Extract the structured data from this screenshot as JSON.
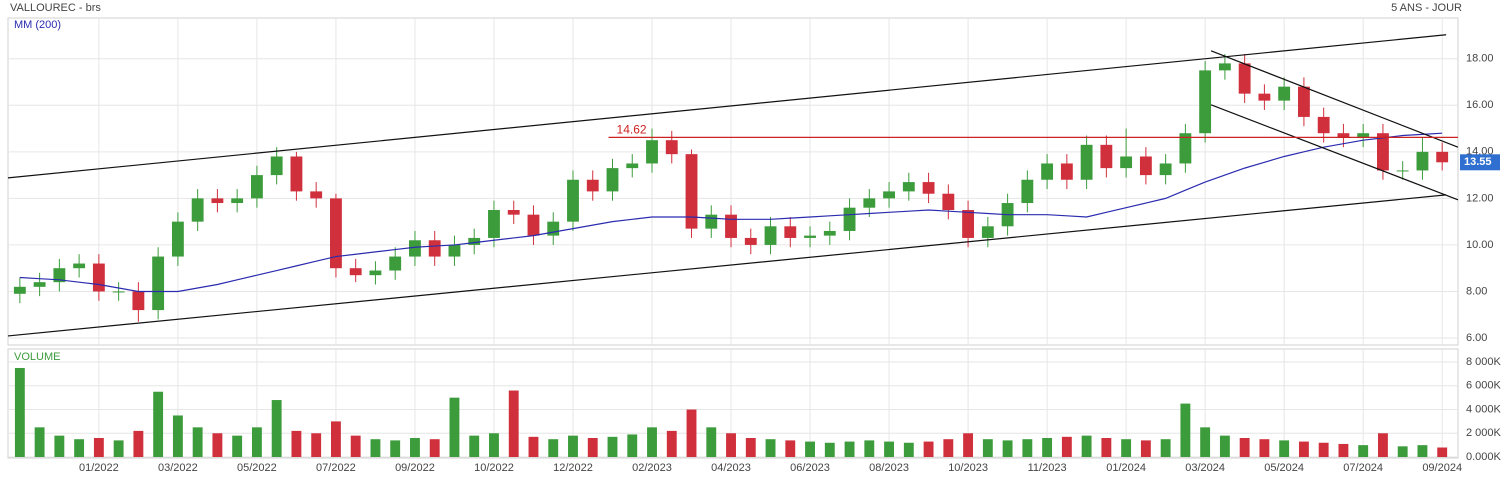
{
  "chart_data": {
    "type": "candlestick",
    "title": "VALLOUREC - brs",
    "period": "5 ANS - JOUR",
    "up_color": "#3c9c3c",
    "down_color": "#d02f3c",
    "xlim": [
      -0.6,
      72.8
    ],
    "xticks": [
      {
        "value": 4,
        "label": "01/2022"
      },
      {
        "value": 8,
        "label": "03/2022"
      },
      {
        "value": 12,
        "label": "05/2022"
      },
      {
        "value": 16,
        "label": "07/2022"
      },
      {
        "value": 20,
        "label": "09/2022"
      },
      {
        "value": 24,
        "label": "10/2022"
      },
      {
        "value": 28,
        "label": "12/2022"
      },
      {
        "value": 32,
        "label": "02/2023"
      },
      {
        "value": 36,
        "label": "04/2023"
      },
      {
        "value": 40,
        "label": "06/2023"
      },
      {
        "value": 44,
        "label": "08/2023"
      },
      {
        "value": 48,
        "label": "10/2023"
      },
      {
        "value": 52,
        "label": "11/2023"
      },
      {
        "value": 56,
        "label": "01/2024"
      },
      {
        "value": 60,
        "label": "03/2024"
      },
      {
        "value": 64,
        "label": "05/2024"
      },
      {
        "value": 68,
        "label": "07/2024"
      },
      {
        "value": 72,
        "label": "09/2024"
      }
    ],
    "ylim": [
      5.7,
      19.75
    ],
    "yticks": [
      {
        "value": 6,
        "label": "6.00"
      },
      {
        "value": 8,
        "label": "8.00"
      },
      {
        "value": 10,
        "label": "10.00"
      },
      {
        "value": 12,
        "label": "12.00"
      },
      {
        "value": 14,
        "label": "14.00"
      },
      {
        "value": 16,
        "label": "16.00"
      },
      {
        "value": 18,
        "label": "18.00"
      }
    ],
    "grid": true,
    "open": [
      7.9,
      8.2,
      8.4,
      9.0,
      9.2,
      8.0,
      8.0,
      7.2,
      9.5,
      11.0,
      12.0,
      11.8,
      12.0,
      13.0,
      13.8,
      12.3,
      12.0,
      9.0,
      8.7,
      8.9,
      9.5,
      10.2,
      9.5,
      10.0,
      10.3,
      11.5,
      11.3,
      10.4,
      11.0,
      12.8,
      12.3,
      13.3,
      13.5,
      14.5,
      13.9,
      10.7,
      11.3,
      10.3,
      10.0,
      10.8,
      10.3,
      10.4,
      10.6,
      11.6,
      12.0,
      12.3,
      12.7,
      12.2,
      11.5,
      10.3,
      10.8,
      11.8,
      12.8,
      13.5,
      12.8,
      14.3,
      13.3,
      13.8,
      13.0,
      13.5,
      14.8,
      17.5,
      17.8,
      16.5,
      16.2,
      16.8,
      15.5,
      14.8,
      14.6,
      14.8,
      13.2,
      13.2,
      14.0
    ],
    "high": [
      8.6,
      8.8,
      9.4,
      9.6,
      9.6,
      8.4,
      8.4,
      9.9,
      11.4,
      12.4,
      12.4,
      12.4,
      13.4,
      14.2,
      14.0,
      12.7,
      12.2,
      9.4,
      9.3,
      9.9,
      10.6,
      10.6,
      10.4,
      10.7,
      11.9,
      11.9,
      11.7,
      11.4,
      13.2,
      13.2,
      13.7,
      13.9,
      15.0,
      14.9,
      14.1,
      11.7,
      11.7,
      10.7,
      11.2,
      11.2,
      10.8,
      11.0,
      12.0,
      12.4,
      12.7,
      13.1,
      13.1,
      12.6,
      11.9,
      11.2,
      12.2,
      13.2,
      13.9,
      13.9,
      14.7,
      14.7,
      15.0,
      14.2,
      13.9,
      15.2,
      17.9,
      18.2,
      18.2,
      16.9,
      17.2,
      17.2,
      15.9,
      15.2,
      15.2,
      15.2,
      13.6,
      14.6,
      14.4
    ],
    "low": [
      7.5,
      7.8,
      8.0,
      8.6,
      7.6,
      7.6,
      6.7,
      6.8,
      9.1,
      10.6,
      11.4,
      11.4,
      11.6,
      12.6,
      11.9,
      11.6,
      8.6,
      8.4,
      8.3,
      8.5,
      9.1,
      9.1,
      9.1,
      9.6,
      9.9,
      10.9,
      10.0,
      10.0,
      10.6,
      11.9,
      11.9,
      12.9,
      13.1,
      13.5,
      10.3,
      10.3,
      9.9,
      9.6,
      9.6,
      9.9,
      9.9,
      10.0,
      10.2,
      11.2,
      11.6,
      11.9,
      11.8,
      11.1,
      9.9,
      9.9,
      10.4,
      11.4,
      12.4,
      12.4,
      12.4,
      12.9,
      12.9,
      12.6,
      12.6,
      13.1,
      14.4,
      17.1,
      16.1,
      15.8,
      15.8,
      15.1,
      14.4,
      14.2,
      14.2,
      12.8,
      12.8,
      12.8,
      13.2
    ],
    "close": [
      8.2,
      8.4,
      9.0,
      9.2,
      8.0,
      8.0,
      7.2,
      9.5,
      11.0,
      12.0,
      11.8,
      12.0,
      13.0,
      13.8,
      12.3,
      12.0,
      9.0,
      8.7,
      8.9,
      9.5,
      10.2,
      9.5,
      10.0,
      10.3,
      11.5,
      11.3,
      10.4,
      11.0,
      12.8,
      12.3,
      13.3,
      13.5,
      14.5,
      13.9,
      10.7,
      11.3,
      10.3,
      10.0,
      10.8,
      10.3,
      10.4,
      10.6,
      11.6,
      12.0,
      12.3,
      12.7,
      12.2,
      11.5,
      10.3,
      10.8,
      11.8,
      12.8,
      13.5,
      12.8,
      14.3,
      13.3,
      13.8,
      13.0,
      13.5,
      14.8,
      17.5,
      17.8,
      16.5,
      16.2,
      16.8,
      15.5,
      14.8,
      14.6,
      14.8,
      13.2,
      13.2,
      14.0,
      13.55
    ],
    "ma": {
      "name": "MM (200)",
      "color": "#2b2bb0",
      "values": [
        8.6,
        8.55,
        8.5,
        8.4,
        8.3,
        8.15,
        8.0,
        8.0,
        8.0,
        8.15,
        8.3,
        8.5,
        8.7,
        8.9,
        9.1,
        9.3,
        9.5,
        9.6,
        9.7,
        9.8,
        9.9,
        9.95,
        10.0,
        10.1,
        10.2,
        10.3,
        10.4,
        10.55,
        10.7,
        10.85,
        11.0,
        11.1,
        11.2,
        11.2,
        11.2,
        11.15,
        11.1,
        11.1,
        11.1,
        11.15,
        11.2,
        11.25,
        11.3,
        11.35,
        11.4,
        11.45,
        11.5,
        11.45,
        11.4,
        11.35,
        11.3,
        11.3,
        11.3,
        11.25,
        11.2,
        11.4,
        11.6,
        11.8,
        12.0,
        12.35,
        12.7,
        13.0,
        13.3,
        13.55,
        13.8,
        14.0,
        14.2,
        14.35,
        14.5,
        14.6,
        14.7,
        14.75,
        14.8
      ]
    },
    "lines": [
      {
        "x": [
          -0.6,
          72.2
        ],
        "y": [
          12.88,
          19.03
        ]
      },
      {
        "x": [
          -0.6,
          72.2
        ],
        "y": [
          6.09,
          12.15
        ]
      },
      {
        "x": [
          60.3,
          72.8
        ],
        "y": [
          18.34,
          14.2
        ]
      },
      {
        "x": [
          60.3,
          72.8
        ],
        "y": [
          16.02,
          11.94
        ]
      }
    ],
    "level": {
      "value": 14.62,
      "x": [
        29.8,
        72.8
      ],
      "color": "#cc2222"
    },
    "last": {
      "value": 13.55,
      "color": "#2f6fd0"
    },
    "volume": {
      "name": "VOLUME",
      "ylim": [
        0,
        9100000
      ],
      "yticks": [
        {
          "value": 0,
          "label": "0.000K"
        },
        {
          "value": 2000000,
          "label": "2 000K"
        },
        {
          "value": 4000000,
          "label": "4 000K"
        },
        {
          "value": 6000000,
          "label": "6 000K"
        },
        {
          "value": 8000000,
          "label": "8 000K"
        }
      ],
      "values": [
        7500000,
        2500000,
        1800000,
        1500000,
        1600000,
        1400000,
        2200000,
        5500000,
        3500000,
        2500000,
        2000000,
        1800000,
        2500000,
        4800000,
        2200000,
        2000000,
        3000000,
        1800000,
        1500000,
        1400000,
        1600000,
        1500000,
        5000000,
        1800000,
        2000000,
        5600000,
        1700000,
        1500000,
        1800000,
        1600000,
        1700000,
        1900000,
        2500000,
        2200000,
        4000000,
        2500000,
        2000000,
        1600000,
        1500000,
        1400000,
        1300000,
        1200000,
        1300000,
        1400000,
        1300000,
        1200000,
        1300000,
        1500000,
        2000000,
        1500000,
        1400000,
        1500000,
        1600000,
        1700000,
        1800000,
        1600000,
        1500000,
        1400000,
        1500000,
        4500000,
        2500000,
        1800000,
        1600000,
        1500000,
        1400000,
        1300000,
        1200000,
        1100000,
        1000000,
        2000000,
        900000,
        1000000,
        800000
      ]
    }
  }
}
